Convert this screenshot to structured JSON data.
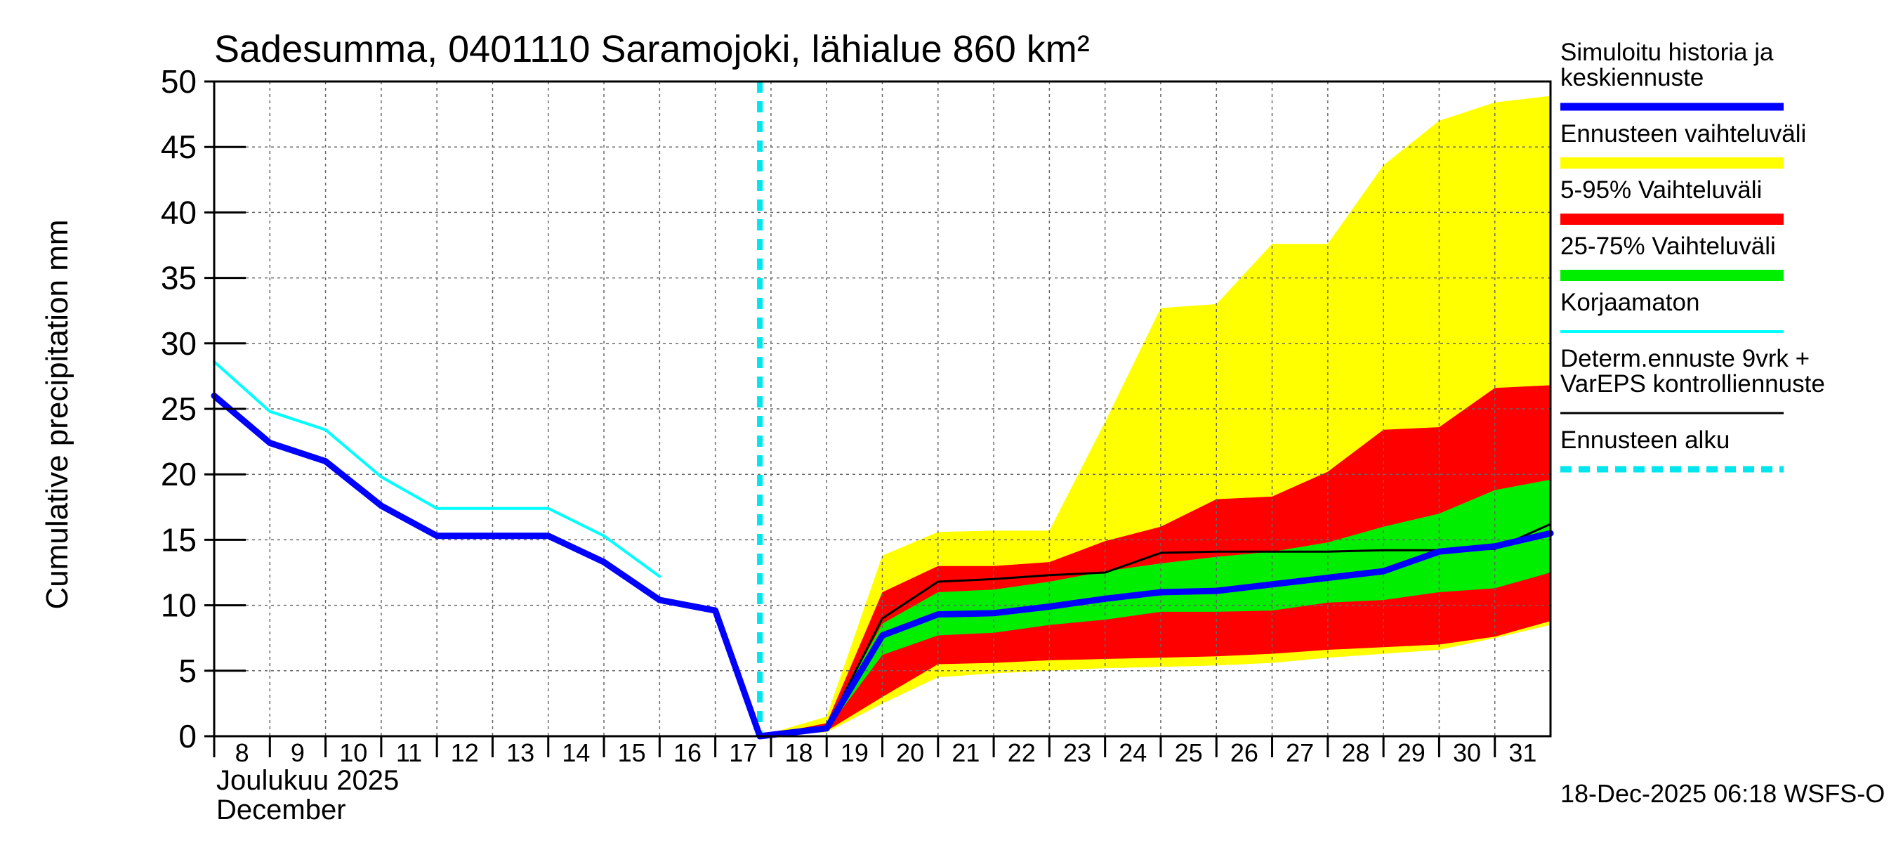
{
  "chart_data": {
    "type": "area",
    "title": "Sadesumma, 0401110 Saramojoki, lähialue 860 km²",
    "ylabel": "Cumulative precipitation   mm",
    "xlabel_line1": "Joulukuu  2025",
    "xlabel_line2": "December",
    "ylim": [
      0,
      50
    ],
    "yticks": [
      0,
      5,
      10,
      15,
      20,
      25,
      30,
      35,
      40,
      45,
      50
    ],
    "xlim": [
      8,
      32
    ],
    "xticks": [
      8,
      9,
      10,
      11,
      12,
      13,
      14,
      15,
      16,
      17,
      18,
      19,
      20,
      21,
      22,
      23,
      24,
      25,
      26,
      27,
      28,
      29,
      30,
      31
    ],
    "forecast_start": 17.8,
    "footer": "18-Dec-2025 06:18 WSFS-O",
    "colors": {
      "range_full": "#ffff00",
      "range_5_95": "#ff0000",
      "range_25_75": "#00ee00",
      "simulated": "#0000ff",
      "uncorrected": "#00ffff",
      "deterministic": "#000000",
      "forecast_start": "#00e5ee"
    },
    "series": [
      {
        "name": "Ennusteen vaihteluväli",
        "kind": "band",
        "color": "#ffff00",
        "x": [
          17.8,
          19,
          20,
          21,
          22,
          23,
          24,
          25,
          26,
          27,
          28,
          29,
          30,
          31,
          32
        ],
        "lower": [
          0,
          0.3,
          2.5,
          4.5,
          4.8,
          5.0,
          5.2,
          5.3,
          5.4,
          5.6,
          6.0,
          6.3,
          6.6,
          7.5,
          8.5
        ],
        "upper": [
          0,
          1.5,
          13.8,
          15.6,
          15.7,
          15.7,
          24.0,
          32.7,
          33.0,
          37.6,
          37.6,
          43.6,
          47.0,
          48.4,
          48.9
        ]
      },
      {
        "name": "5-95% Vaihteluväli",
        "kind": "band",
        "color": "#ff0000",
        "x": [
          17.8,
          19,
          20,
          21,
          22,
          23,
          24,
          25,
          26,
          27,
          28,
          29,
          30,
          31,
          32
        ],
        "lower": [
          0,
          0.4,
          3.0,
          5.5,
          5.6,
          5.8,
          5.9,
          6.0,
          6.1,
          6.3,
          6.6,
          6.8,
          7.0,
          7.6,
          8.8
        ],
        "upper": [
          0,
          1.0,
          11.0,
          13.0,
          13.0,
          13.3,
          14.9,
          16.0,
          18.1,
          18.3,
          20.2,
          23.4,
          23.6,
          26.6,
          26.8
        ]
      },
      {
        "name": "25-75% Vaihteluväli",
        "kind": "band",
        "color": "#00ee00",
        "x": [
          17.8,
          19,
          20,
          21,
          22,
          23,
          24,
          25,
          26,
          27,
          28,
          29,
          30,
          31,
          32
        ],
        "lower": [
          0,
          0.5,
          6.2,
          7.7,
          7.9,
          8.5,
          8.9,
          9.5,
          9.5,
          9.6,
          10.2,
          10.4,
          11.0,
          11.3,
          12.5
        ],
        "upper": [
          0,
          0.8,
          8.6,
          11.0,
          11.2,
          11.8,
          12.6,
          13.2,
          13.7,
          14.1,
          14.8,
          16.0,
          17.0,
          18.8,
          19.6
        ]
      },
      {
        "name": "Determ.ennuste 9vrk + VarEPS kontrolliennuste",
        "kind": "line",
        "color": "#000000",
        "width": 3,
        "x": [
          17.8,
          19,
          20,
          21,
          22,
          23,
          24,
          25,
          26,
          27,
          28,
          29,
          30,
          31,
          32
        ],
        "y": [
          0,
          0.6,
          9.0,
          11.8,
          12.0,
          12.3,
          12.5,
          14.0,
          14.1,
          14.1,
          14.1,
          14.2,
          14.2,
          14.3,
          16.2
        ]
      },
      {
        "name": "Korjaamaton",
        "kind": "line",
        "color": "#00ffff",
        "width": 4,
        "x": [
          8,
          9,
          10,
          11,
          12,
          13,
          14,
          15,
          16
        ],
        "y": [
          28.6,
          24.8,
          23.4,
          19.8,
          17.4,
          17.4,
          17.4,
          15.3,
          12.2
        ]
      },
      {
        "name": "Simuloitu historia ja keskiennuste",
        "kind": "line",
        "color": "#0000ff",
        "width": 9,
        "x": [
          8,
          9,
          10,
          11,
          12,
          13,
          14,
          15,
          16,
          17,
          17.8,
          19,
          20,
          21,
          22,
          23,
          24,
          25,
          26,
          27,
          28,
          29,
          30,
          31,
          32
        ],
        "y": [
          26.0,
          22.4,
          21.0,
          17.6,
          15.3,
          15.3,
          15.3,
          13.3,
          10.4,
          9.6,
          0,
          0.6,
          7.7,
          9.3,
          9.4,
          9.9,
          10.5,
          11.0,
          11.1,
          11.6,
          12.1,
          12.6,
          14.1,
          14.5,
          15.5
        ]
      }
    ],
    "legend": [
      {
        "lines": [
          "Simuloitu historia ja",
          "keskiennuste"
        ],
        "color": "#0000ff",
        "style": "thick"
      },
      {
        "lines": [
          "Ennusteen vaihteluväli"
        ],
        "color": "#ffff00",
        "style": "band"
      },
      {
        "lines": [
          "5-95% Vaihteluväli"
        ],
        "color": "#ff0000",
        "style": "band"
      },
      {
        "lines": [
          "25-75% Vaihteluväli"
        ],
        "color": "#00ee00",
        "style": "band"
      },
      {
        "lines": [
          "Korjaamaton"
        ],
        "color": "#00ffff",
        "style": "thin"
      },
      {
        "lines": [
          "Determ.ennuste 9vrk +",
          "VarEPS kontrolliennuste"
        ],
        "color": "#000000",
        "style": "hair"
      },
      {
        "lines": [
          "Ennusteen alku"
        ],
        "color": "#00e5ee",
        "style": "dash"
      }
    ]
  }
}
